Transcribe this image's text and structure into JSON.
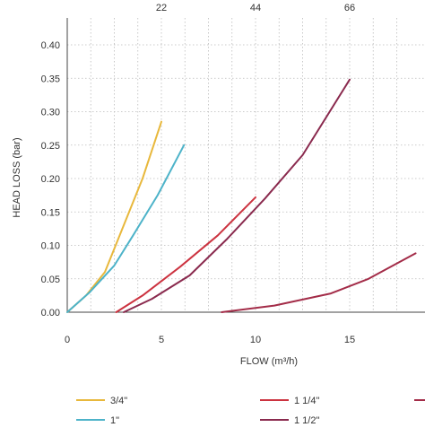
{
  "chart_data": {
    "type": "line",
    "title": "",
    "xlabel": "FLOW (m³/h)",
    "ylabel": "HEAD LOSS (bar)",
    "xlim": [
      0,
      18.5
    ],
    "ylim": [
      0,
      0.4
    ],
    "grid": true,
    "x_ticks": [
      "0",
      "5",
      "10",
      "15"
    ],
    "x_tick_values": [
      0,
      5,
      10,
      15
    ],
    "y_ticks": [
      "0.00",
      "0.05",
      "0.10",
      "0.15",
      "0.20",
      "0.25",
      "0.30",
      "0.35",
      "0.40"
    ],
    "y_tick_values": [
      0,
      0.05,
      0.1,
      0.15,
      0.2,
      0.25,
      0.3,
      0.35,
      0.4
    ],
    "top_ticks": [
      {
        "label": "22",
        "x": 5
      },
      {
        "label": "44",
        "x": 10
      },
      {
        "label": "66",
        "x": 15
      }
    ],
    "legend_position": "bottom",
    "series": [
      {
        "name": "3/4\"",
        "color": "#e8b83c",
        "points": [
          [
            0,
            0
          ],
          [
            1,
            0.025
          ],
          [
            2,
            0.06
          ],
          [
            3,
            0.13
          ],
          [
            4,
            0.2
          ],
          [
            5,
            0.285
          ]
        ]
      },
      {
        "name": "1\"",
        "color": "#4db3c9",
        "points": [
          [
            0,
            0
          ],
          [
            1.2,
            0.03
          ],
          [
            2.5,
            0.07
          ],
          [
            3.5,
            0.115
          ],
          [
            4.8,
            0.175
          ],
          [
            6.2,
            0.25
          ]
        ]
      },
      {
        "name": "1 1/4\"",
        "color": "#cc3340",
        "points": [
          [
            2.6,
            0
          ],
          [
            4,
            0.025
          ],
          [
            6,
            0.068
          ],
          [
            8,
            0.115
          ],
          [
            10,
            0.172
          ]
        ]
      },
      {
        "name": "1 1/2\"",
        "color": "#8a2a4e",
        "points": [
          [
            3,
            0
          ],
          [
            4.5,
            0.02
          ],
          [
            6.5,
            0.055
          ],
          [
            8.5,
            0.11
          ],
          [
            10.5,
            0.17
          ],
          [
            12.5,
            0.235
          ],
          [
            15,
            0.348
          ]
        ]
      },
      {
        "name": "",
        "color": "#a32c48",
        "points": [
          [
            8.2,
            0
          ],
          [
            11,
            0.01
          ],
          [
            14,
            0.028
          ],
          [
            16,
            0.05
          ],
          [
            18.5,
            0.088
          ]
        ]
      }
    ]
  }
}
